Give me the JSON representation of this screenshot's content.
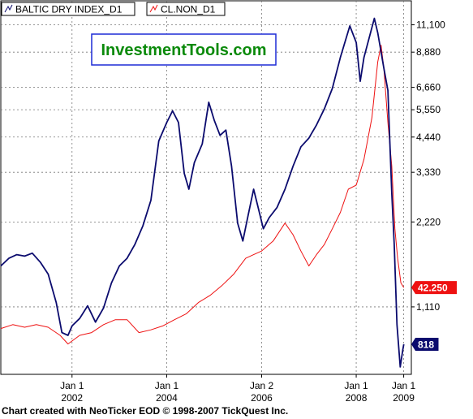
{
  "legend": [
    {
      "label": "BALTIC DRY INDEX_D1",
      "color": "#0b0b6e"
    },
    {
      "label": "CL.NON_D1",
      "color": "#ee1111"
    }
  ],
  "watermark": "InvestmentTools.com",
  "footer": "Chart created with NeoTicker EOD © 1998-2007 TickQuest Inc.",
  "chart_data": {
    "type": "line",
    "y_scale": "log",
    "grid": true,
    "x_ticks": [
      {
        "line1": "Jan 1",
        "line2": "2002",
        "date": "2002-01-01"
      },
      {
        "line1": "Jan 1",
        "line2": "2004",
        "date": "2004-01-01"
      },
      {
        "line1": "Jan 2",
        "line2": "2006",
        "date": "2006-01-02"
      },
      {
        "line1": "Jan 1",
        "line2": "2008",
        "date": "2008-01-01"
      },
      {
        "line1": "Jan 1",
        "line2": "2009",
        "date": "2009-01-01"
      }
    ],
    "xlim": [
      "2000-07-01",
      "2009-03-01"
    ],
    "ylim": [
      640,
      13500
    ],
    "y_ticks": [
      {
        "label": "1,110",
        "value": 1110
      },
      {
        "label": "2,220",
        "value": 2220
      },
      {
        "label": "3,330",
        "value": 3330
      },
      {
        "label": "4,440",
        "value": 4440
      },
      {
        "label": "5,550",
        "value": 5550
      },
      {
        "label": "6,660",
        "value": 6660
      },
      {
        "label": "8,880",
        "value": 8880
      },
      {
        "label": "11,100",
        "value": 11100
      }
    ],
    "series": [
      {
        "name": "BALTIC DRY INDEX_D1",
        "color": "#0b0b6e",
        "last_label": "818",
        "points": [
          [
            "2000-07-01",
            1550
          ],
          [
            "2000-09-01",
            1650
          ],
          [
            "2000-11-01",
            1700
          ],
          [
            "2001-01-01",
            1680
          ],
          [
            "2001-03-01",
            1720
          ],
          [
            "2001-05-01",
            1600
          ],
          [
            "2001-07-01",
            1450
          ],
          [
            "2001-09-01",
            1150
          ],
          [
            "2001-10-15",
            900
          ],
          [
            "2001-12-01",
            880
          ],
          [
            "2002-01-01",
            950
          ],
          [
            "2002-03-01",
            1010
          ],
          [
            "2002-05-01",
            1120
          ],
          [
            "2002-07-01",
            980
          ],
          [
            "2002-09-01",
            1100
          ],
          [
            "2002-11-01",
            1350
          ],
          [
            "2003-01-01",
            1550
          ],
          [
            "2003-03-01",
            1650
          ],
          [
            "2003-05-01",
            1850
          ],
          [
            "2003-07-01",
            2150
          ],
          [
            "2003-09-01",
            2650
          ],
          [
            "2003-11-01",
            4300
          ],
          [
            "2004-01-01",
            5000
          ],
          [
            "2004-02-15",
            5500
          ],
          [
            "2004-04-01",
            5000
          ],
          [
            "2004-05-15",
            3300
          ],
          [
            "2004-06-20",
            2900
          ],
          [
            "2004-08-01",
            3600
          ],
          [
            "2004-10-01",
            4200
          ],
          [
            "2004-11-20",
            5900
          ],
          [
            "2005-01-01",
            5100
          ],
          [
            "2005-02-15",
            4500
          ],
          [
            "2005-04-01",
            4700
          ],
          [
            "2005-05-15",
            3500
          ],
          [
            "2005-07-01",
            2200
          ],
          [
            "2005-08-10",
            1900
          ],
          [
            "2005-09-20",
            2350
          ],
          [
            "2005-11-01",
            2900
          ],
          [
            "2005-12-01",
            2550
          ],
          [
            "2006-01-15",
            2100
          ],
          [
            "2006-03-01",
            2300
          ],
          [
            "2006-05-01",
            2500
          ],
          [
            "2006-07-01",
            2900
          ],
          [
            "2006-09-01",
            3500
          ],
          [
            "2006-11-01",
            4100
          ],
          [
            "2007-01-01",
            4400
          ],
          [
            "2007-03-01",
            4900
          ],
          [
            "2007-05-01",
            5600
          ],
          [
            "2007-07-01",
            6600
          ],
          [
            "2007-09-01",
            8500
          ],
          [
            "2007-11-13",
            11000
          ],
          [
            "2008-01-01",
            9600
          ],
          [
            "2008-02-01",
            7000
          ],
          [
            "2008-03-01",
            8500
          ],
          [
            "2008-05-20",
            11700
          ],
          [
            "2008-06-15",
            10400
          ],
          [
            "2008-08-01",
            7800
          ],
          [
            "2008-09-01",
            6500
          ],
          [
            "2008-10-01",
            2800
          ],
          [
            "2008-10-20",
            1850
          ],
          [
            "2008-11-10",
            960
          ],
          [
            "2008-12-05",
            680
          ],
          [
            "2008-12-25",
            780
          ],
          [
            "2009-01-02",
            818
          ]
        ]
      },
      {
        "name": "CL.NON_D1",
        "color": "#ee1111",
        "last_label": "42.250",
        "points": [
          [
            "2000-07-01",
            930
          ],
          [
            "2000-10-01",
            960
          ],
          [
            "2001-01-01",
            940
          ],
          [
            "2001-04-01",
            960
          ],
          [
            "2001-07-01",
            940
          ],
          [
            "2001-10-01",
            880
          ],
          [
            "2001-12-01",
            820
          ],
          [
            "2002-03-01",
            880
          ],
          [
            "2002-06-01",
            900
          ],
          [
            "2002-09-01",
            960
          ],
          [
            "2002-12-01",
            1000
          ],
          [
            "2003-03-01",
            1000
          ],
          [
            "2003-06-01",
            900
          ],
          [
            "2003-09-01",
            920
          ],
          [
            "2003-12-01",
            950
          ],
          [
            "2004-03-01",
            1000
          ],
          [
            "2004-06-01",
            1050
          ],
          [
            "2004-09-01",
            1150
          ],
          [
            "2004-12-01",
            1220
          ],
          [
            "2005-03-01",
            1320
          ],
          [
            "2005-06-01",
            1450
          ],
          [
            "2005-09-01",
            1650
          ],
          [
            "2005-11-01",
            1700
          ],
          [
            "2006-01-01",
            1750
          ],
          [
            "2006-04-01",
            1900
          ],
          [
            "2006-07-01",
            2200
          ],
          [
            "2006-09-01",
            2000
          ],
          [
            "2006-11-01",
            1750
          ],
          [
            "2007-01-01",
            1550
          ],
          [
            "2007-03-01",
            1700
          ],
          [
            "2007-05-01",
            1850
          ],
          [
            "2007-07-01",
            2100
          ],
          [
            "2007-09-01",
            2400
          ],
          [
            "2007-11-01",
            2900
          ],
          [
            "2008-01-01",
            3000
          ],
          [
            "2008-03-01",
            3700
          ],
          [
            "2008-05-01",
            5200
          ],
          [
            "2008-06-15",
            8200
          ],
          [
            "2008-07-11",
            9400
          ],
          [
            "2008-08-01",
            7800
          ],
          [
            "2008-09-01",
            5000
          ],
          [
            "2008-10-01",
            3500
          ],
          [
            "2008-10-25",
            2100
          ],
          [
            "2008-11-15",
            1650
          ],
          [
            "2008-12-10",
            1350
          ],
          [
            "2009-01-02",
            1300
          ]
        ]
      }
    ]
  }
}
